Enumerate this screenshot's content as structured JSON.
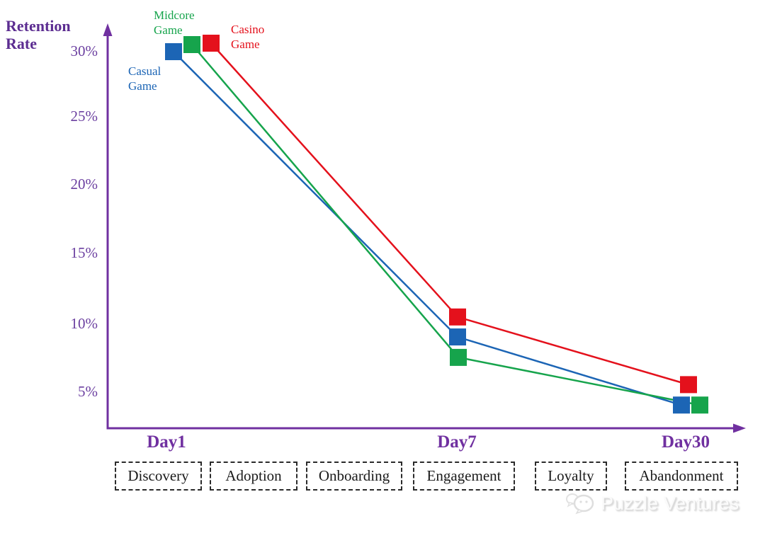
{
  "colors": {
    "axis": "#7030A0",
    "title_text": "#5C2D91",
    "tick_text": "#6B3FA0",
    "day_label_text": "#7030A0",
    "casual_blue": "#1C65B5",
    "midcore_green": "#16A44C",
    "casino_red": "#E4111C",
    "box_border": "#2B2B2B",
    "box_text": "#1A1A1A",
    "watermark_gray": "#FBFBFB"
  },
  "chart_data": {
    "type": "line",
    "title": "",
    "ylabel": "Retention Rate",
    "xlabel": "",
    "categories": [
      "Day1",
      "Day7",
      "Day30"
    ],
    "ytick_labels": [
      "30%",
      "25%",
      "20%",
      "15%",
      "10%",
      "5%"
    ],
    "yticks": [
      30,
      25,
      20,
      15,
      10,
      5
    ],
    "ylim": [
      0,
      32
    ],
    "grid": false,
    "marker": "square",
    "legend_position": "inline-labels-near-first-point",
    "series": [
      {
        "name": "Casual Game",
        "color": "#1C65B5",
        "values": [
          30,
          9,
          4
        ]
      },
      {
        "name": "Midcore Game",
        "color": "#16A44C",
        "values": [
          30,
          7.5,
          4
        ]
      },
      {
        "name": "Casino Game",
        "color": "#E4111C",
        "values": [
          30,
          10,
          5.5
        ]
      }
    ]
  },
  "funnel_stages": [
    "Discovery",
    "Adoption",
    "Onboarding",
    "Engagement",
    "Loyalty",
    "Abandonment"
  ],
  "watermark": {
    "text": "Puzzle Ventures",
    "icon": "chat-bubbles-face-logo"
  }
}
